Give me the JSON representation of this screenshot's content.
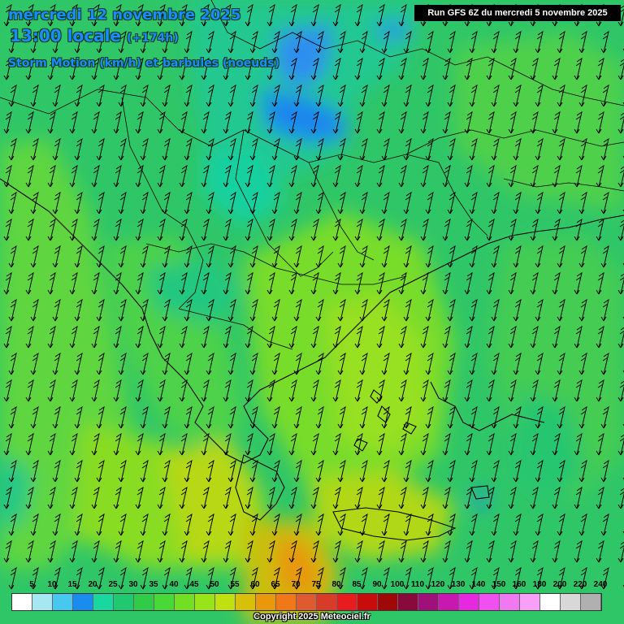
{
  "header": {
    "date": "mercredi 12 novembre 2025",
    "time": "13:00 locale",
    "hours": "(+174h)",
    "parameter": "Storm Motion (km/h) et barbules (noeuds)",
    "run": "Run GFS 6Z du mercredi 5 novembre 2025"
  },
  "legend": {
    "labels": [
      "5",
      "10",
      "15",
      "20",
      "25",
      "30",
      "35",
      "40",
      "45",
      "50",
      "55",
      "60",
      "65",
      "70",
      "75",
      "80",
      "85",
      "90",
      "100",
      "110",
      "120",
      "130",
      "140",
      "150",
      "160",
      "180",
      "200",
      "220",
      "240"
    ],
    "colors": [
      "#ffffff",
      "#a6e8f2",
      "#46c8f0",
      "#1a8cf0",
      "#18d8a0",
      "#20c870",
      "#30cc48",
      "#48d838",
      "#70e020",
      "#98e418",
      "#c0e010",
      "#d8c008",
      "#e89808",
      "#f07818",
      "#e05a30",
      "#d83c28",
      "#e81c1c",
      "#c80c0c",
      "#a00808",
      "#880a3a",
      "#a0107a",
      "#c818b0",
      "#e828e0",
      "#f050f0",
      "#f078f0",
      "#f8a0f8",
      "#ffffff",
      "#d8d8d8",
      "#b0b0b0"
    ]
  },
  "footer": {
    "copyright": "Copyright 2025 Meteociel.fr"
  },
  "map": {
    "region": "Balkans, Greece and Aegean Sea",
    "wind_direction": "north-northeasterly",
    "features": [
      "blue area over northern Serbia",
      "orange area south of Crete"
    ]
  }
}
